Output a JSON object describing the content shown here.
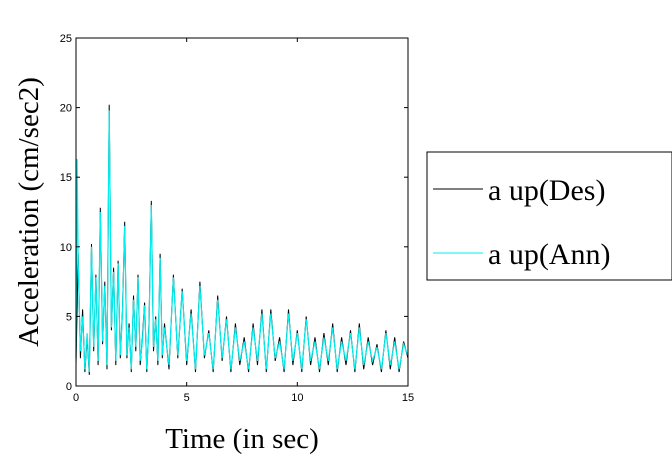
{
  "chart_data": {
    "type": "line",
    "title": "",
    "xlabel": "Time (in sec)",
    "ylabel": "Acceleration (cm/sec2)",
    "xlim": [
      0,
      15
    ],
    "ylim": [
      0,
      25
    ],
    "x_ticks": [
      0,
      5,
      10,
      15
    ],
    "y_ticks": [
      0,
      5,
      10,
      15,
      20,
      25
    ],
    "x_tick_labels": [
      "0",
      "5",
      "10",
      "15"
    ],
    "y_tick_labels": [
      "0",
      "5",
      "10",
      "15",
      "20",
      "25"
    ],
    "grid": false,
    "legend_position": "right",
    "series": [
      {
        "name": "a up(Des)",
        "color": "#000000",
        "x": [
          0,
          0.1,
          0.2,
          0.3,
          0.4,
          0.5,
          0.6,
          0.7,
          0.8,
          0.9,
          1.0,
          1.1,
          1.2,
          1.3,
          1.4,
          1.5,
          1.6,
          1.7,
          1.8,
          1.9,
          2.0,
          2.1,
          2.2,
          2.3,
          2.4,
          2.5,
          2.6,
          2.7,
          2.8,
          2.9,
          3.0,
          3.1,
          3.2,
          3.3,
          3.4,
          3.5,
          3.6,
          3.7,
          3.8,
          3.9,
          4.0,
          4.2,
          4.4,
          4.6,
          4.8,
          5.0,
          5.2,
          5.4,
          5.6,
          5.8,
          6.0,
          6.2,
          6.4,
          6.6,
          6.8,
          7.0,
          7.2,
          7.4,
          7.6,
          7.8,
          8.0,
          8.2,
          8.4,
          8.6,
          8.8,
          9.0,
          9.2,
          9.4,
          9.6,
          9.8,
          10.0,
          10.2,
          10.4,
          10.6,
          10.8,
          11.0,
          11.2,
          11.4,
          11.6,
          11.8,
          12.0,
          12.2,
          12.4,
          12.6,
          12.8,
          13.0,
          13.2,
          13.4,
          13.6,
          13.8,
          14.0,
          14.2,
          14.4,
          14.6,
          14.8,
          15.0
        ],
        "y": [
          1.5,
          9.5,
          2.0,
          5.5,
          1.0,
          3.5,
          0.8,
          10.2,
          2.5,
          8.0,
          1.5,
          12.8,
          3.0,
          7.5,
          1.2,
          20.2,
          4.0,
          8.5,
          1.5,
          9.0,
          2.0,
          5.5,
          11.8,
          2.0,
          4.5,
          1.0,
          6.5,
          2.5,
          8.0,
          1.5,
          3.5,
          6.0,
          1.0,
          4.5,
          13.3,
          2.5,
          5.0,
          1.5,
          9.5,
          2.0,
          4.5,
          1.2,
          8.0,
          2.0,
          7.0,
          1.5,
          5.5,
          1.0,
          7.5,
          2.0,
          4.0,
          1.0,
          6.5,
          1.8,
          5.0,
          1.0,
          4.5,
          1.5,
          3.5,
          1.0,
          4.5,
          1.5,
          5.5,
          1.0,
          5.5,
          1.8,
          3.5,
          1.0,
          5.5,
          1.5,
          4.0,
          1.0,
          5.0,
          1.5,
          3.5,
          1.0,
          3.8,
          1.5,
          4.5,
          1.0,
          3.5,
          1.5,
          4.0,
          1.0,
          4.5,
          1.2,
          3.5,
          1.5,
          3.0,
          1.0,
          4.0,
          1.2,
          3.5,
          1.0,
          3.2,
          2.0
        ]
      },
      {
        "name": "a up(Ann)",
        "color": "#00eeee",
        "x": [
          0,
          0.05,
          0.1,
          0.2,
          0.3,
          0.4,
          0.5,
          0.6,
          0.7,
          0.8,
          0.9,
          1.0,
          1.1,
          1.2,
          1.3,
          1.4,
          1.5,
          1.6,
          1.7,
          1.8,
          1.9,
          2.0,
          2.1,
          2.2,
          2.3,
          2.4,
          2.5,
          2.6,
          2.7,
          2.8,
          2.9,
          3.0,
          3.1,
          3.2,
          3.3,
          3.4,
          3.5,
          3.6,
          3.7,
          3.8,
          3.9,
          4.0,
          4.2,
          4.4,
          4.6,
          4.8,
          5.0,
          5.2,
          5.4,
          5.6,
          5.8,
          6.0,
          6.2,
          6.4,
          6.6,
          6.8,
          7.0,
          7.2,
          7.4,
          7.6,
          7.8,
          8.0,
          8.2,
          8.4,
          8.6,
          8.8,
          9.0,
          9.2,
          9.4,
          9.6,
          9.8,
          10.0,
          10.2,
          10.4,
          10.6,
          10.8,
          11.0,
          11.2,
          11.4,
          11.6,
          11.8,
          12.0,
          12.2,
          12.4,
          12.6,
          12.8,
          13.0,
          13.2,
          13.4,
          13.6,
          13.8,
          14.0,
          14.2,
          14.4,
          14.6,
          14.8,
          15.0
        ],
        "y": [
          2.0,
          16.3,
          9.0,
          2.5,
          5.0,
          1.2,
          3.8,
          1.0,
          10.0,
          2.8,
          7.8,
          1.8,
          12.5,
          3.2,
          7.2,
          1.5,
          19.8,
          4.2,
          8.2,
          1.8,
          8.8,
          2.2,
          5.2,
          11.5,
          2.2,
          4.2,
          1.2,
          6.2,
          2.8,
          7.8,
          1.8,
          3.2,
          5.8,
          1.2,
          4.2,
          13.0,
          2.8,
          4.8,
          1.8,
          9.2,
          2.2,
          4.2,
          1.5,
          7.8,
          2.2,
          6.8,
          1.8,
          5.2,
          1.2,
          7.2,
          2.2,
          3.8,
          1.2,
          6.2,
          2.0,
          4.8,
          1.2,
          4.2,
          1.8,
          3.2,
          1.2,
          4.2,
          1.8,
          5.2,
          1.2,
          5.2,
          2.0,
          3.2,
          1.2,
          5.2,
          1.8,
          3.8,
          1.2,
          4.8,
          1.8,
          3.2,
          1.2,
          3.5,
          1.8,
          4.2,
          1.2,
          3.2,
          1.8,
          3.8,
          1.2,
          4.2,
          1.5,
          3.2,
          1.8,
          2.8,
          1.2,
          3.8,
          1.5,
          3.2,
          1.2,
          3.0,
          2.2
        ]
      }
    ]
  }
}
